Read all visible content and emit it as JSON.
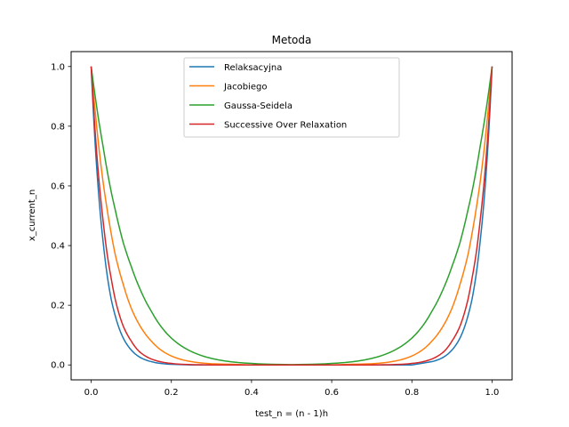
{
  "chart_data": {
    "type": "line",
    "title": "Metoda",
    "xlabel": "test_n = (n - 1)h",
    "ylabel": "x_current_n",
    "xlim": [
      -0.05,
      1.05
    ],
    "ylim": [
      -0.05,
      1.05
    ],
    "xticks": [
      "0.0",
      "0.2",
      "0.4",
      "0.6",
      "0.8",
      "1.0"
    ],
    "yticks": [
      "0.0",
      "0.2",
      "0.4",
      "0.6",
      "0.8",
      "1.0"
    ],
    "grid": false,
    "legend_position": "upper center",
    "x": [
      0.0,
      0.01,
      0.02,
      0.03,
      0.04,
      0.05,
      0.06,
      0.08,
      0.1,
      0.12,
      0.15,
      0.2,
      0.25,
      0.3,
      0.4,
      0.5,
      0.6,
      0.7,
      0.75,
      0.8,
      0.85,
      0.88,
      0.9,
      0.92,
      0.94,
      0.95,
      0.96,
      0.97,
      0.98,
      0.99,
      1.0
    ],
    "series": [
      {
        "name": "Relaksacyjna",
        "color": "#1f77b4",
        "values": [
          1.0,
          0.74,
          0.55,
          0.41,
          0.3,
          0.22,
          0.165,
          0.09,
          0.05,
          0.027,
          0.011,
          0.002,
          0.0,
          0.0,
          0.0,
          0.0,
          0.0,
          0.0,
          0.0,
          0.0,
          0.011,
          0.027,
          0.05,
          0.09,
          0.165,
          0.22,
          0.3,
          0.41,
          0.55,
          0.74,
          1.0
        ]
      },
      {
        "name": "Jacobiego",
        "color": "#ff7f0e",
        "values": [
          1.0,
          0.85,
          0.72,
          0.61,
          0.52,
          0.44,
          0.37,
          0.27,
          0.19,
          0.135,
          0.08,
          0.03,
          0.011,
          0.004,
          0.0,
          0.0,
          0.0,
          0.004,
          0.011,
          0.03,
          0.08,
          0.135,
          0.19,
          0.27,
          0.37,
          0.44,
          0.52,
          0.61,
          0.72,
          0.85,
          1.0
        ]
      },
      {
        "name": "Gaussa-Seidela",
        "color": "#2ca02c",
        "values": [
          1.0,
          0.9,
          0.81,
          0.73,
          0.65,
          0.58,
          0.52,
          0.41,
          0.33,
          0.26,
          0.18,
          0.09,
          0.045,
          0.022,
          0.005,
          0.001,
          0.005,
          0.022,
          0.045,
          0.09,
          0.18,
          0.26,
          0.33,
          0.41,
          0.52,
          0.58,
          0.65,
          0.73,
          0.81,
          0.9,
          1.0
        ]
      },
      {
        "name": "Successive Over Relaxation",
        "color": "#d62728",
        "values": [
          1.0,
          0.78,
          0.61,
          0.48,
          0.37,
          0.29,
          0.22,
          0.13,
          0.08,
          0.045,
          0.02,
          0.005,
          0.001,
          0.0,
          0.0,
          0.0,
          0.0,
          0.0,
          0.001,
          0.005,
          0.02,
          0.045,
          0.08,
          0.13,
          0.22,
          0.29,
          0.37,
          0.48,
          0.61,
          0.78,
          1.0
        ]
      }
    ]
  }
}
